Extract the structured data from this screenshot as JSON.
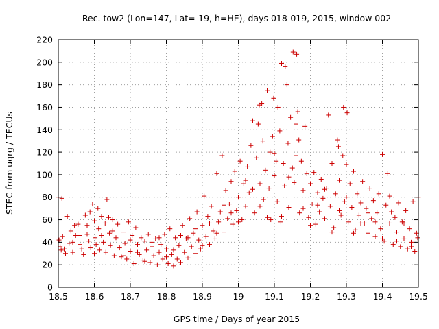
{
  "chart_data": {
    "type": "scatter",
    "title": "Rec. tow2 (Lon=147, Lat=-19, h=HE), days 018-019, 2015, window 002",
    "xlabel": "GPS time / Days of year 2015",
    "ylabel": "STEC from uqrg / TECUs",
    "xlim": [
      18.5,
      19.5
    ],
    "ylim": [
      0,
      220
    ],
    "xticks": [
      18.5,
      18.6,
      18.7,
      18.8,
      18.9,
      19.0,
      19.1,
      19.2,
      19.3,
      19.4,
      19.5
    ],
    "xtick_labels": [
      "18.5",
      "18.6",
      "18.7",
      "18.8",
      "18.9",
      "19",
      "19.1",
      "19.2",
      "19.3",
      "19.4",
      "19.5"
    ],
    "yticks": [
      0,
      20,
      40,
      60,
      80,
      100,
      120,
      140,
      160,
      180,
      200,
      220
    ],
    "ytick_labels": [
      "0",
      "20",
      "40",
      "60",
      "80",
      "100",
      "120",
      "140",
      "160",
      "180",
      "200",
      "220"
    ],
    "grid": true,
    "marker": "plus",
    "color": "#cc0000",
    "points": [
      [
        18.5,
        80
      ],
      [
        18.502,
        42
      ],
      [
        18.505,
        36
      ],
      [
        18.51,
        79
      ],
      [
        18.512,
        45
      ],
      [
        18.518,
        34
      ],
      [
        18.525,
        63
      ],
      [
        18.53,
        39
      ],
      [
        18.535,
        50
      ],
      [
        18.54,
        31
      ],
      [
        18.545,
        55
      ],
      [
        18.548,
        46
      ],
      [
        18.555,
        56
      ],
      [
        18.56,
        38
      ],
      [
        18.565,
        34
      ],
      [
        18.57,
        29
      ],
      [
        18.575,
        64
      ],
      [
        18.58,
        47
      ],
      [
        18.585,
        41
      ],
      [
        18.588,
        67
      ],
      [
        18.59,
        35
      ],
      [
        18.595,
        74
      ],
      [
        18.6,
        59
      ],
      [
        18.602,
        44
      ],
      [
        18.605,
        38
      ],
      [
        18.61,
        70
      ],
      [
        18.612,
        52
      ],
      [
        18.615,
        33
      ],
      [
        18.62,
        46
      ],
      [
        18.625,
        40
      ],
      [
        18.63,
        57
      ],
      [
        18.632,
        31
      ],
      [
        18.635,
        78
      ],
      [
        18.64,
        62
      ],
      [
        18.642,
        48
      ],
      [
        18.645,
        37
      ],
      [
        18.65,
        60
      ],
      [
        18.655,
        28
      ],
      [
        18.66,
        44
      ],
      [
        18.665,
        56
      ],
      [
        18.67,
        35
      ],
      [
        18.675,
        27
      ],
      [
        18.68,
        49
      ],
      [
        18.685,
        39
      ],
      [
        18.69,
        25
      ],
      [
        18.695,
        58
      ],
      [
        18.7,
        32
      ],
      [
        18.705,
        46
      ],
      [
        18.71,
        21
      ],
      [
        18.715,
        53
      ],
      [
        18.72,
        38
      ],
      [
        18.725,
        29
      ],
      [
        18.73,
        44
      ],
      [
        18.735,
        24
      ],
      [
        18.74,
        41
      ],
      [
        18.745,
        33
      ],
      [
        18.75,
        47
      ],
      [
        18.755,
        22
      ],
      [
        18.76,
        36
      ],
      [
        18.765,
        28
      ],
      [
        18.77,
        43
      ],
      [
        18.775,
        20
      ],
      [
        18.78,
        31
      ],
      [
        18.785,
        38
      ],
      [
        18.79,
        25
      ],
      [
        18.795,
        47
      ],
      [
        18.8,
        34
      ],
      [
        18.805,
        21
      ],
      [
        18.81,
        52
      ],
      [
        18.815,
        29
      ],
      [
        18.82,
        19
      ],
      [
        18.825,
        44
      ],
      [
        18.83,
        25
      ],
      [
        18.835,
        37
      ],
      [
        18.84,
        22
      ],
      [
        18.845,
        55
      ],
      [
        18.85,
        31
      ],
      [
        18.855,
        43
      ],
      [
        18.86,
        26
      ],
      [
        18.865,
        61
      ],
      [
        18.87,
        36
      ],
      [
        18.875,
        48
      ],
      [
        18.88,
        30
      ],
      [
        18.885,
        67
      ],
      [
        18.89,
        42
      ],
      [
        18.895,
        34
      ],
      [
        18.9,
        55
      ],
      [
        18.905,
        81
      ],
      [
        18.91,
        45
      ],
      [
        18.915,
        63
      ],
      [
        18.92,
        38
      ],
      [
        18.925,
        72
      ],
      [
        18.93,
        50
      ],
      [
        18.935,
        43
      ],
      [
        18.94,
        101
      ],
      [
        18.945,
        58
      ],
      [
        18.95,
        67
      ],
      [
        18.955,
        117
      ],
      [
        18.96,
        49
      ],
      [
        18.965,
        86
      ],
      [
        18.97,
        61
      ],
      [
        18.975,
        74
      ],
      [
        18.98,
        94
      ],
      [
        18.985,
        56
      ],
      [
        18.99,
        103
      ],
      [
        18.995,
        68
      ],
      [
        19.0,
        80
      ],
      [
        19.005,
        112
      ],
      [
        19.01,
        60
      ],
      [
        19.015,
        92
      ],
      [
        19.02,
        72
      ],
      [
        19.025,
        107
      ],
      [
        19.03,
        84
      ],
      [
        19.035,
        126
      ],
      [
        19.04,
        148
      ],
      [
        19.045,
        66
      ],
      [
        19.05,
        115
      ],
      [
        19.055,
        145
      ],
      [
        19.058,
        162
      ],
      [
        19.06,
        92
      ],
      [
        19.065,
        163
      ],
      [
        19.068,
        130
      ],
      [
        19.07,
        78
      ],
      [
        19.075,
        104
      ],
      [
        19.08,
        175
      ],
      [
        19.085,
        88
      ],
      [
        19.088,
        120
      ],
      [
        19.09,
        60
      ],
      [
        19.095,
        134
      ],
      [
        19.098,
        168
      ],
      [
        19.1,
        99
      ],
      [
        19.105,
        112
      ],
      [
        19.108,
        76
      ],
      [
        19.11,
        160
      ],
      [
        19.115,
        139
      ],
      [
        19.118,
        58
      ],
      [
        19.12,
        199
      ],
      [
        19.125,
        110
      ],
      [
        19.128,
        90
      ],
      [
        19.13,
        196
      ],
      [
        19.135,
        180
      ],
      [
        19.138,
        128
      ],
      [
        19.14,
        71
      ],
      [
        19.145,
        151
      ],
      [
        19.15,
        106
      ],
      [
        19.152,
        209
      ],
      [
        19.155,
        93
      ],
      [
        19.16,
        145
      ],
      [
        19.162,
        207
      ],
      [
        19.165,
        156
      ],
      [
        19.168,
        131
      ],
      [
        19.17,
        66
      ],
      [
        19.175,
        112
      ],
      [
        19.18,
        86
      ],
      [
        19.185,
        143
      ],
      [
        19.19,
        101
      ],
      [
        19.195,
        62
      ],
      [
        19.2,
        92
      ],
      [
        19.205,
        74
      ],
      [
        19.21,
        102
      ],
      [
        19.215,
        56
      ],
      [
        19.22,
        84
      ],
      [
        19.225,
        67
      ],
      [
        19.23,
        96
      ],
      [
        19.235,
        79
      ],
      [
        19.24,
        61
      ],
      [
        19.245,
        88
      ],
      [
        19.25,
        153
      ],
      [
        19.255,
        72
      ],
      [
        19.26,
        110
      ],
      [
        19.265,
        53
      ],
      [
        19.27,
        83
      ],
      [
        19.275,
        131
      ],
      [
        19.278,
        125
      ],
      [
        19.28,
        95
      ],
      [
        19.285,
        64
      ],
      [
        19.29,
        117
      ],
      [
        19.292,
        160
      ],
      [
        19.295,
        76
      ],
      [
        19.3,
        109
      ],
      [
        19.302,
        155
      ],
      [
        19.305,
        58
      ],
      [
        19.31,
        92
      ],
      [
        19.315,
        71
      ],
      [
        19.32,
        103
      ],
      [
        19.325,
        51
      ],
      [
        19.33,
        83
      ],
      [
        19.335,
        64
      ],
      [
        19.34,
        75
      ],
      [
        19.345,
        94
      ],
      [
        19.35,
        57
      ],
      [
        19.355,
        70
      ],
      [
        19.36,
        48
      ],
      [
        19.365,
        88
      ],
      [
        19.37,
        61
      ],
      [
        19.375,
        77
      ],
      [
        19.38,
        45
      ],
      [
        19.385,
        66
      ],
      [
        19.39,
        83
      ],
      [
        19.395,
        52
      ],
      [
        19.4,
        118
      ],
      [
        19.405,
        41
      ],
      [
        19.41,
        73
      ],
      [
        19.415,
        101
      ],
      [
        19.42,
        57
      ],
      [
        19.425,
        67
      ],
      [
        19.43,
        38
      ],
      [
        19.435,
        62
      ],
      [
        19.44,
        49
      ],
      [
        19.445,
        75
      ],
      [
        19.45,
        36
      ],
      [
        19.455,
        58
      ],
      [
        19.46,
        43
      ],
      [
        19.465,
        68
      ],
      [
        19.47,
        34
      ],
      [
        19.475,
        52
      ],
      [
        19.48,
        40
      ],
      [
        19.485,
        76
      ],
      [
        19.49,
        32
      ],
      [
        19.495,
        48
      ],
      [
        19.5,
        80
      ],
      [
        18.508,
        33
      ],
      [
        18.52,
        30
      ],
      [
        18.54,
        40
      ],
      [
        18.56,
        46
      ],
      [
        18.58,
        55
      ],
      [
        18.6,
        30
      ],
      [
        18.62,
        63
      ],
      [
        18.65,
        50
      ],
      [
        18.68,
        28
      ],
      [
        18.7,
        42
      ],
      [
        18.72,
        31
      ],
      [
        18.74,
        23
      ],
      [
        18.76,
        40
      ],
      [
        18.78,
        44
      ],
      [
        18.8,
        27
      ],
      [
        18.82,
        33
      ],
      [
        18.84,
        46
      ],
      [
        18.86,
        44
      ],
      [
        18.88,
        52
      ],
      [
        18.9,
        37
      ],
      [
        18.92,
        57
      ],
      [
        18.94,
        48
      ],
      [
        18.96,
        73
      ],
      [
        18.98,
        66
      ],
      [
        19.0,
        58
      ],
      [
        19.02,
        95
      ],
      [
        19.04,
        87
      ],
      [
        19.06,
        72
      ],
      [
        19.08,
        62
      ],
      [
        19.1,
        119
      ],
      [
        19.12,
        63
      ],
      [
        19.14,
        98
      ],
      [
        19.16,
        117
      ],
      [
        19.18,
        70
      ],
      [
        19.2,
        55
      ],
      [
        19.22,
        73
      ],
      [
        19.24,
        87
      ],
      [
        19.26,
        49
      ],
      [
        19.28,
        68
      ],
      [
        19.3,
        80
      ],
      [
        19.32,
        48
      ],
      [
        19.34,
        57
      ],
      [
        19.36,
        66
      ],
      [
        19.38,
        58
      ],
      [
        19.4,
        43
      ],
      [
        19.42,
        81
      ],
      [
        19.44,
        41
      ],
      [
        19.46,
        57
      ],
      [
        19.48,
        36
      ],
      [
        19.498,
        44
      ]
    ]
  }
}
